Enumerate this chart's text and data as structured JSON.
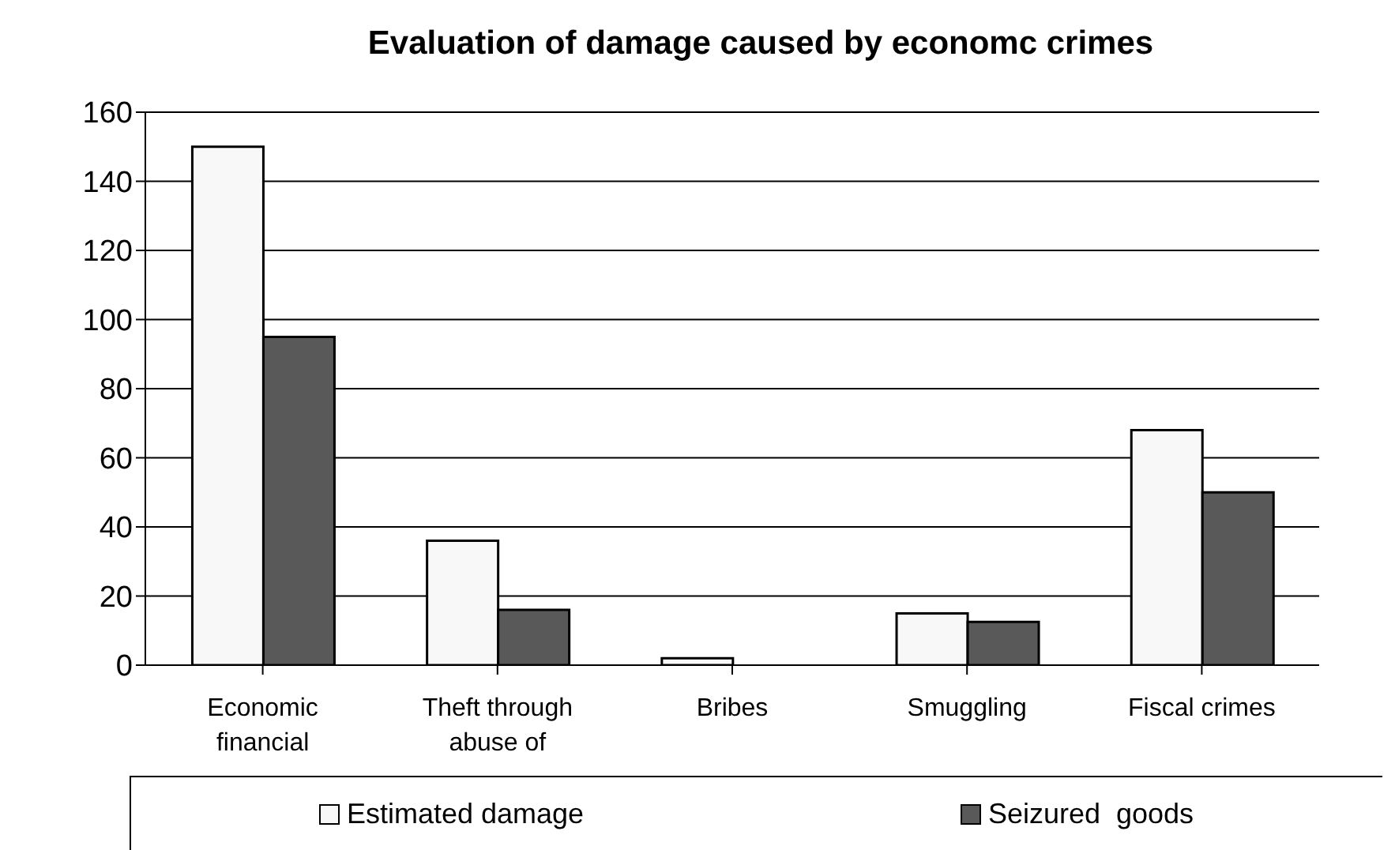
{
  "chart_data": {
    "type": "bar",
    "title": "Evaluation of damage caused by economc crimes",
    "categories": [
      "Economic financial",
      "Theft through abuse of",
      "Bribes",
      "Smuggling",
      "Fiscal crimes"
    ],
    "series": [
      {
        "name": "Estimated damage",
        "color": "#f8f8f8",
        "values": [
          150,
          36,
          2,
          15,
          68
        ]
      },
      {
        "name": "Seizured  goods",
        "color": "#595959",
        "values": [
          95,
          16,
          0,
          12.5,
          50
        ]
      }
    ],
    "ylim": [
      0,
      160
    ],
    "yticks": [
      0,
      20,
      40,
      60,
      80,
      100,
      120,
      140,
      160
    ],
    "grid": "y",
    "legend": "bottom"
  }
}
